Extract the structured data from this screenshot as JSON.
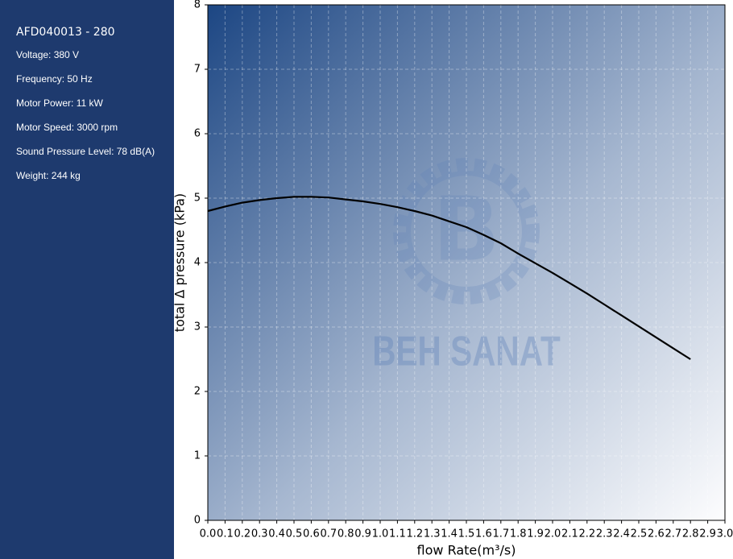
{
  "panel": {
    "title": "AFD040013 - 280",
    "specs": [
      "Voltage: 380 V",
      "Frequency: 50 Hz",
      "Motor Power: 11 kW",
      "Motor Speed: 3000 rpm",
      "Sound Pressure Level: 78 dB(A)",
      "Weight: 244 kg"
    ]
  },
  "chart_data": {
    "type": "line",
    "xlabel": "flow Rate(m³/s)",
    "ylabel": "total Δ pressure (kPa)",
    "watermark": "BEH SANAT",
    "x": [
      0.0,
      0.1,
      0.2,
      0.3,
      0.4,
      0.5,
      0.6,
      0.7,
      0.8,
      0.9,
      1.0,
      1.1,
      1.2,
      1.3,
      1.4,
      1.5,
      1.6,
      1.7,
      1.8,
      1.9,
      2.0,
      2.1,
      2.2,
      2.3,
      2.4,
      2.5,
      2.6,
      2.7,
      2.8
    ],
    "values": [
      4.8,
      4.87,
      4.93,
      4.97,
      5.0,
      5.02,
      5.02,
      5.01,
      4.98,
      4.95,
      4.91,
      4.86,
      4.8,
      4.73,
      4.64,
      4.55,
      4.43,
      4.3,
      4.14,
      3.99,
      3.84,
      3.68,
      3.52,
      3.35,
      3.18,
      3.01,
      2.84,
      2.67,
      2.5
    ],
    "color": "#000000",
    "xlim": [
      0,
      3
    ],
    "ylim": [
      0,
      8
    ],
    "xticks": [
      {
        "value": 0,
        "label": "0.0"
      },
      0.1,
      0.2,
      0.3,
      0.4,
      0.5,
      0.6,
      0.7,
      0.8,
      0.9,
      {
        "value": 1,
        "label": "1.0"
      },
      1.1,
      1.2,
      1.3,
      1.4,
      1.5,
      1.6,
      1.7,
      1.8,
      1.9,
      {
        "value": 2,
        "label": "2.0"
      },
      2.1,
      2.2,
      2.3,
      2.4,
      2.5,
      2.6,
      2.7,
      2.8,
      2.9,
      {
        "value": 3,
        "label": "3.0"
      }
    ],
    "yticks": [
      0,
      1,
      2,
      3,
      4,
      5,
      6,
      7,
      8
    ],
    "grid": true
  }
}
